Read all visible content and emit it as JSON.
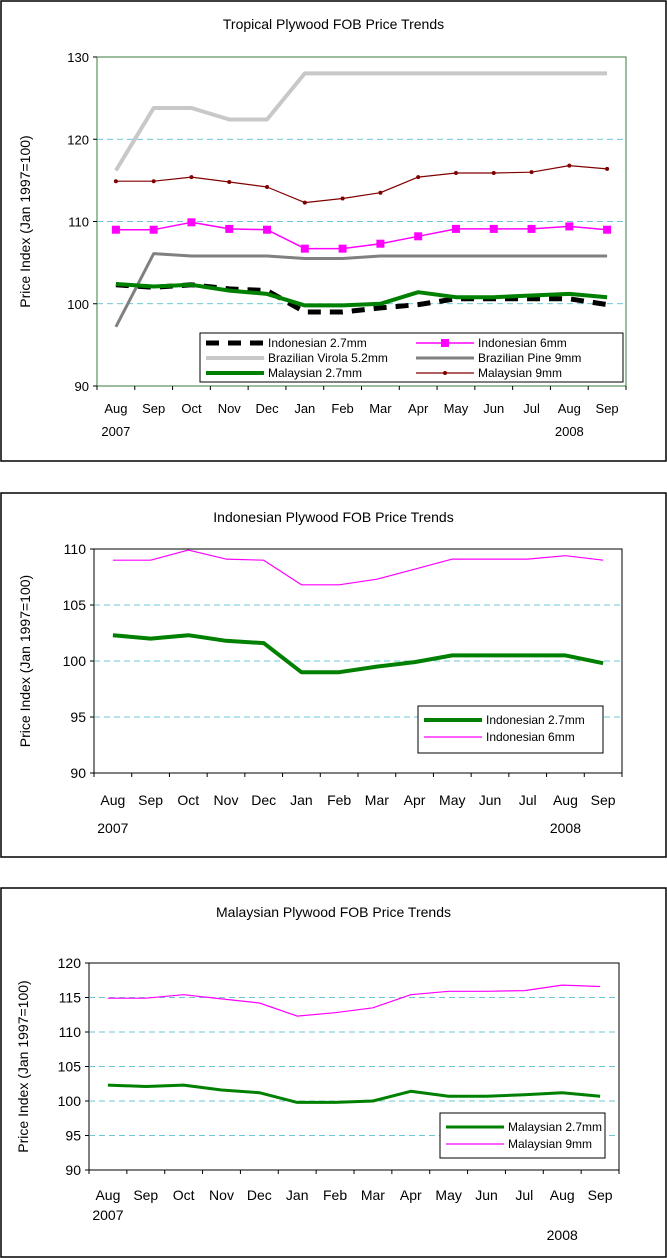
{
  "chart_data": [
    {
      "type": "line",
      "title": "Tropical Plywood FOB Price Trends",
      "ylabel": "Price Index (Jan 1997=100)",
      "xlabel": "",
      "categories": [
        "Aug",
        "Sep",
        "Oct",
        "Nov",
        "Dec",
        "Jan",
        "Feb",
        "Mar",
        "Apr",
        "May",
        "Jun",
        "Jul",
        "Aug",
        "Sep"
      ],
      "year_labels": [
        {
          "index": 0,
          "label": "2007"
        },
        {
          "index": 12,
          "label": "2008"
        }
      ],
      "ylim": [
        90,
        130
      ],
      "yticks": [
        90,
        100,
        110,
        120,
        130
      ],
      "grid": true,
      "legend_position": "bottom-right",
      "series": [
        {
          "name": "Indonesian 2.7mm",
          "color": "#000000",
          "values": [
            102.3,
            102.0,
            102.3,
            101.8,
            101.6,
            99.0,
            99.0,
            99.5,
            99.9,
            100.6,
            100.6,
            100.6,
            100.6,
            99.9
          ]
        },
        {
          "name": "Indonesian 6mm",
          "color": "#ff00ff",
          "values": [
            109.0,
            109.0,
            109.9,
            109.1,
            109.0,
            106.7,
            106.7,
            107.3,
            108.2,
            109.1,
            109.1,
            109.1,
            109.4,
            109.0
          ]
        },
        {
          "name": "Brazilian Virola 5.2mm",
          "color": "#c8c8c8",
          "values": [
            116.2,
            123.8,
            123.8,
            122.4,
            122.4,
            128.0,
            128.0,
            128.0,
            128.0,
            128.0,
            128.0,
            128.0,
            128.0,
            128.0
          ]
        },
        {
          "name": "Brazilian Pine 9mm",
          "color": "#808080",
          "values": [
            97.2,
            106.1,
            105.8,
            105.8,
            105.8,
            105.5,
            105.5,
            105.8,
            105.8,
            105.8,
            105.8,
            105.8,
            105.8,
            105.8
          ]
        },
        {
          "name": "Malaysian 2.7mm",
          "color": "#008000",
          "values": [
            102.4,
            102.1,
            102.3,
            101.6,
            101.2,
            99.8,
            99.8,
            100.0,
            101.4,
            100.8,
            100.8,
            101.0,
            101.2,
            100.8
          ]
        },
        {
          "name": "Malaysian 9mm",
          "color": "#800000",
          "values": [
            114.9,
            114.9,
            115.4,
            114.8,
            114.2,
            112.3,
            112.8,
            113.5,
            115.4,
            115.9,
            115.9,
            116.0,
            116.8,
            116.4
          ]
        }
      ]
    },
    {
      "type": "line",
      "title": "Indonesian Plywood FOB Price Trends",
      "ylabel": "Price Index (Jan 1997=100)",
      "xlabel": "",
      "categories": [
        "Aug",
        "Sep",
        "Oct",
        "Nov",
        "Dec",
        "Jan",
        "Feb",
        "Mar",
        "Apr",
        "May",
        "Jun",
        "Jul",
        "Aug",
        "Sep"
      ],
      "year_labels": [
        {
          "index": 0,
          "label": "2007"
        },
        {
          "index": 12,
          "label": "2008"
        }
      ],
      "ylim": [
        90,
        110
      ],
      "yticks": [
        90,
        95,
        100,
        105,
        110
      ],
      "grid": true,
      "legend_position": "bottom-right",
      "series": [
        {
          "name": "Indonesian 2.7mm",
          "color": "#008000",
          "values": [
            102.3,
            102.0,
            102.3,
            101.8,
            101.6,
            99.0,
            99.0,
            99.5,
            99.9,
            100.5,
            100.5,
            100.5,
            100.5,
            99.8
          ]
        },
        {
          "name": "Indonesian 6mm",
          "color": "#ff00ff",
          "values": [
            109.0,
            109.0,
            109.9,
            109.1,
            109.0,
            106.8,
            106.8,
            107.3,
            108.2,
            109.1,
            109.1,
            109.1,
            109.4,
            109.0
          ]
        }
      ]
    },
    {
      "type": "line",
      "title": "Malaysian Plywood FOB Price Trends",
      "ylabel": "Price Index (Jan 1997=100)",
      "xlabel": "",
      "categories": [
        "Aug",
        "Sep",
        "Oct",
        "Nov",
        "Dec",
        "Jan",
        "Feb",
        "Mar",
        "Apr",
        "May",
        "Jun",
        "Jul",
        "Aug",
        "Sep"
      ],
      "year_labels": [
        {
          "index": 0,
          "label": "2007"
        },
        {
          "index": 12,
          "label": "2008"
        }
      ],
      "ylim": [
        90,
        120
      ],
      "yticks": [
        90,
        95,
        100,
        105,
        110,
        115,
        120
      ],
      "grid": true,
      "legend_position": "bottom-right",
      "series": [
        {
          "name": "Malaysian 2.7mm",
          "color": "#008000",
          "values": [
            102.3,
            102.1,
            102.3,
            101.6,
            101.2,
            99.8,
            99.8,
            100.0,
            101.4,
            100.7,
            100.7,
            100.9,
            101.2,
            100.7
          ]
        },
        {
          "name": "Malaysian 9mm",
          "color": "#ff00ff",
          "values": [
            114.9,
            114.9,
            115.4,
            114.8,
            114.2,
            112.3,
            112.8,
            113.5,
            115.4,
            115.9,
            115.9,
            116.0,
            116.8,
            116.6
          ]
        }
      ]
    }
  ]
}
